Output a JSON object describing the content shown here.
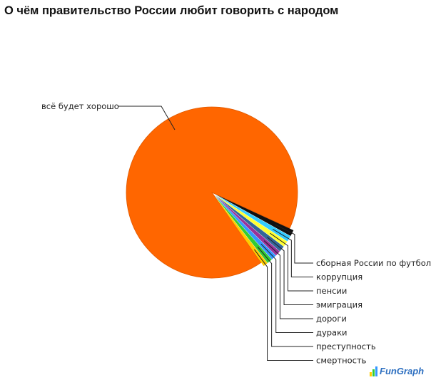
{
  "chart_data": {
    "type": "pie",
    "title": "О чём правительство России любит говорить с народом",
    "slices": [
      {
        "label": "всё будет хорошо",
        "value": 91.6,
        "color": "#ff6600"
      },
      {
        "label": "сборная России по футболу",
        "value": 1.2,
        "color": "#111111"
      },
      {
        "label": "коррупция",
        "value": 1.1,
        "color": "#33ccff"
      },
      {
        "label": "пенсии",
        "value": 1.1,
        "color": "#ffff33"
      },
      {
        "label": "эмиграция",
        "value": 1.1,
        "color": "#336699"
      },
      {
        "label": "дороги",
        "value": 1.0,
        "color": "#993399"
      },
      {
        "label": "дураки",
        "value": 1.0,
        "color": "#3399ff"
      },
      {
        "label": "преступность",
        "value": 1.0,
        "color": "#33cc33"
      },
      {
        "label": "смертность",
        "value": 0.9,
        "color": "#ffcc00"
      }
    ],
    "legend": "labels with leader lines, right"
  },
  "branding": {
    "logo_text": "FunGraph"
  }
}
